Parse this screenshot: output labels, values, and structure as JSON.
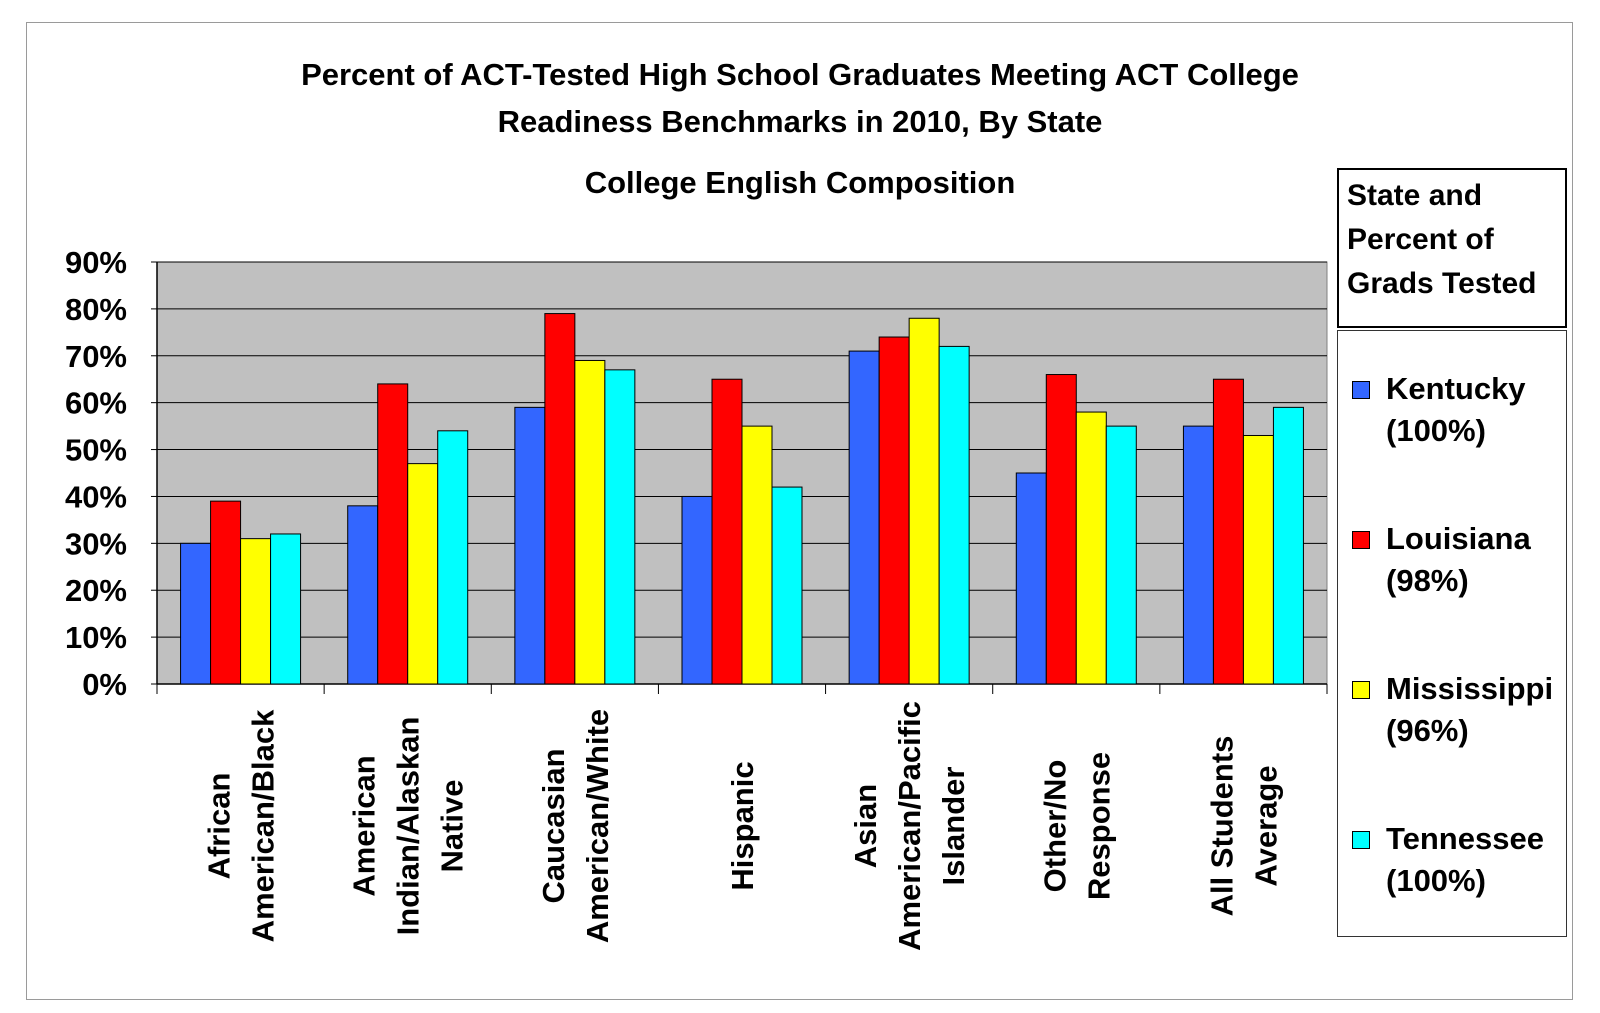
{
  "chart_data": {
    "type": "bar",
    "title": "Percent of ACT-Tested High School Graduates Meeting ACT College Readiness Benchmarks in 2010, By State",
    "title_line1": "Percent of ACT-Tested High School Graduates Meeting ACT College",
    "title_line2": "Readiness Benchmarks in 2010, By State",
    "subtitle": "College English Composition",
    "ylim": [
      0,
      90
    ],
    "yticks": [
      "0%",
      "10%",
      "20%",
      "30%",
      "40%",
      "50%",
      "60%",
      "70%",
      "80%",
      "90%"
    ],
    "grid": true,
    "legend_position": "right",
    "legend_title": "State and Percent of Grads Tested",
    "categories": [
      [
        "African",
        "American/Black"
      ],
      [
        "American",
        "Indian/Alaskan",
        "Native"
      ],
      [
        "Caucasian",
        "American/White"
      ],
      [
        "Hispanic"
      ],
      [
        "Asian",
        "American/Pacific",
        "Islander"
      ],
      [
        "Other/No",
        "Response"
      ],
      [
        "All Students",
        "Average"
      ]
    ],
    "series": [
      {
        "name": "Kentucky",
        "pct": "(100%)",
        "color": "#3366ff",
        "values": [
          30,
          38,
          59,
          40,
          71,
          45,
          55
        ]
      },
      {
        "name": "Louisiana",
        "pct": "(98%)",
        "color": "#ff0000",
        "values": [
          39,
          64,
          79,
          65,
          74,
          66,
          65
        ]
      },
      {
        "name": "Mississippi",
        "pct": "(96%)",
        "color": "#ffff00",
        "values": [
          31,
          47,
          69,
          55,
          78,
          58,
          53
        ]
      },
      {
        "name": "Tennessee",
        "pct": "(100%)",
        "color": "#00ffff",
        "values": [
          32,
          54,
          67,
          42,
          72,
          55,
          59
        ]
      }
    ],
    "plot_background": "#c0c0c0"
  }
}
